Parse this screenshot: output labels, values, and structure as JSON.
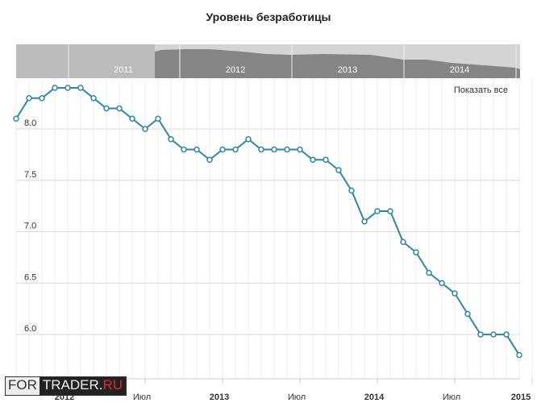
{
  "chart_data": {
    "type": "line",
    "title": "Уровень безработицы",
    "xlabel": "",
    "ylabel": "",
    "x": [
      "2011-09",
      "2011-10",
      "2011-11",
      "2011-12",
      "2012-01",
      "2012-02",
      "2012-03",
      "2012-04",
      "2012-05",
      "2012-06",
      "2012-07",
      "2012-08",
      "2012-09",
      "2012-10",
      "2012-11",
      "2012-12",
      "2013-01",
      "2013-02",
      "2013-03",
      "2013-04",
      "2013-05",
      "2013-06",
      "2013-07",
      "2013-08",
      "2013-09",
      "2013-10",
      "2013-11",
      "2013-12",
      "2014-01",
      "2014-02",
      "2014-03",
      "2014-04",
      "2014-05",
      "2014-06",
      "2014-07",
      "2014-08",
      "2014-09",
      "2014-10",
      "2014-11",
      "2014-12"
    ],
    "values": [
      8.1,
      8.3,
      8.3,
      8.4,
      8.4,
      8.4,
      8.3,
      8.2,
      8.2,
      8.1,
      8.0,
      8.1,
      7.9,
      7.8,
      7.8,
      7.7,
      7.8,
      7.8,
      7.9,
      7.8,
      7.8,
      7.8,
      7.8,
      7.7,
      7.7,
      7.6,
      7.4,
      7.1,
      7.2,
      7.2,
      6.9,
      6.8,
      6.6,
      6.5,
      6.4,
      6.2,
      6.0,
      6.0,
      6.0,
      5.8
    ],
    "ylim": [
      5.7,
      8.5
    ],
    "yticks": [
      "8.0",
      "7.5",
      "7.0",
      "6.5",
      "6.0"
    ],
    "xticks": [
      {
        "label": "2012",
        "index": 4,
        "bold": true
      },
      {
        "label": "Июл",
        "index": 10,
        "bold": false
      },
      {
        "label": "2013",
        "index": 16,
        "bold": true
      },
      {
        "label": "Июл",
        "index": 22,
        "bold": false
      },
      {
        "label": "2014",
        "index": 28,
        "bold": true
      },
      {
        "label": "Июл",
        "index": 34,
        "bold": false
      },
      {
        "label": "2015",
        "index": 40,
        "bold": true
      }
    ],
    "navigator_years": [
      "2011",
      "2012",
      "2013",
      "2014"
    ],
    "grid": true,
    "color": "#2f86a6"
  },
  "ui": {
    "show_all": "Показать все",
    "logo_a": "FOR",
    "logo_b": "TRADER.",
    "logo_r": "RU"
  }
}
